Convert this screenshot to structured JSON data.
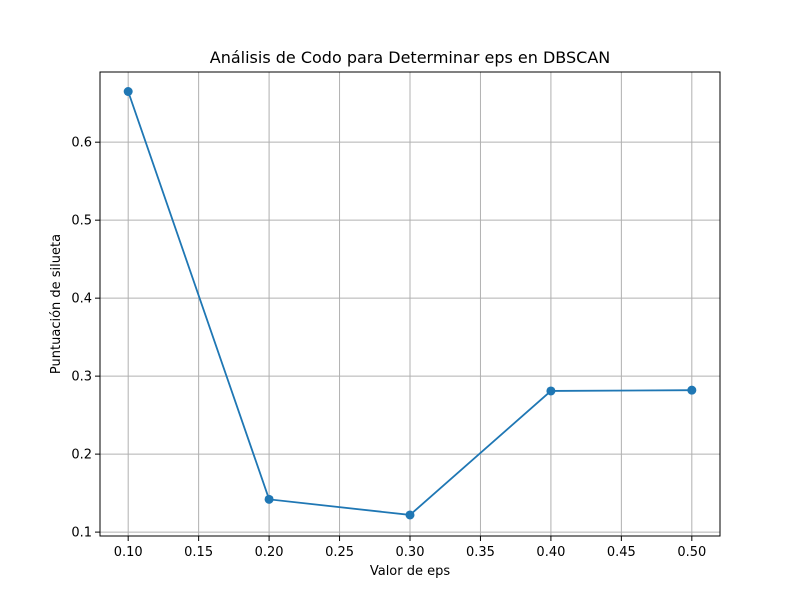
{
  "chart_data": {
    "type": "line",
    "title": "Análisis de Codo para Determinar eps en DBSCAN",
    "xlabel": "Valor de eps",
    "ylabel": "Puntuación de silueta",
    "x": [
      0.1,
      0.2,
      0.3,
      0.4,
      0.5
    ],
    "series": [
      {
        "values": [
          0.665,
          0.142,
          0.122,
          0.281,
          0.282
        ],
        "color": "#1f77b4",
        "marker": "circle"
      }
    ],
    "xlim": [
      0.08,
      0.52
    ],
    "ylim": [
      0.095,
      0.69
    ],
    "xticks": [
      0.1,
      0.15,
      0.2,
      0.25,
      0.3,
      0.35,
      0.4,
      0.45,
      0.5
    ],
    "xtick_labels": [
      "0.10",
      "0.15",
      "0.20",
      "0.25",
      "0.30",
      "0.35",
      "0.40",
      "0.45",
      "0.50"
    ],
    "yticks": [
      0.1,
      0.2,
      0.3,
      0.4,
      0.5,
      0.6
    ],
    "ytick_labels": [
      "0.1",
      "0.2",
      "0.3",
      "0.4",
      "0.5",
      "0.6"
    ],
    "grid": true,
    "grid_color": "#b0b0b0"
  }
}
